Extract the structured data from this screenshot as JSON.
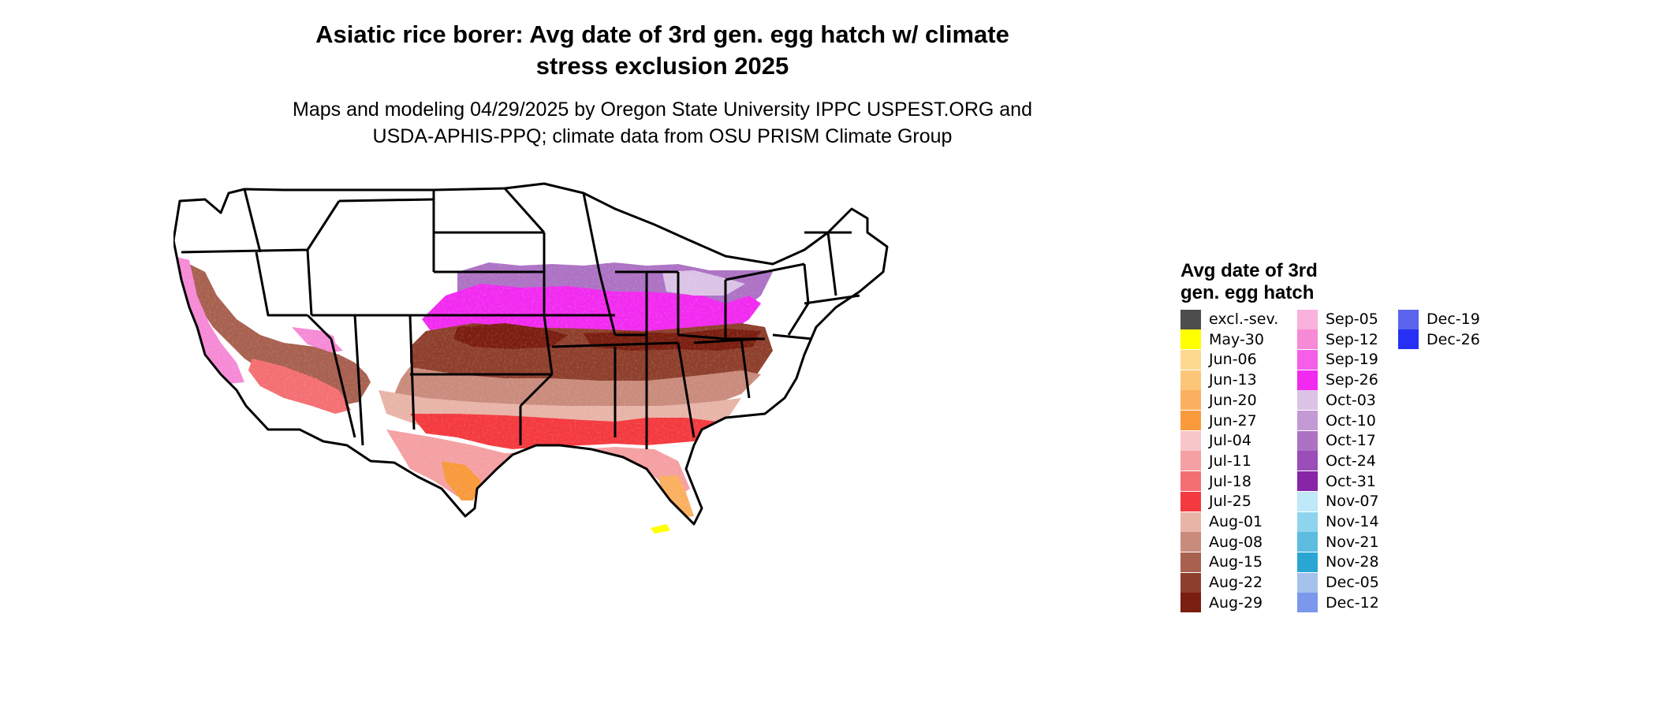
{
  "title": {
    "line1": "Asiatic rice borer: Avg date of 3rd gen. egg hatch w/ climate",
    "line2": "stress exclusion 2025"
  },
  "subtitle": {
    "line1": "Maps and modeling 04/29/2025 by Oregon State University IPPC USPEST.ORG and",
    "line2": "USDA-APHIS-PPQ; climate data from OSU PRISM Climate Group"
  },
  "legend": {
    "title_line1": "Avg date of 3rd",
    "title_line2": "gen. egg hatch",
    "items": [
      {
        "label": "excl.-sev.",
        "color": "#4d4d4d"
      },
      {
        "label": "May-30",
        "color": "#ffff00"
      },
      {
        "label": "Jun-06",
        "color": "#fdd98f"
      },
      {
        "label": "Jun-13",
        "color": "#fcc678"
      },
      {
        "label": "Jun-20",
        "color": "#fbb060"
      },
      {
        "label": "Jun-27",
        "color": "#f99a3c"
      },
      {
        "label": "Jul-04",
        "color": "#f7c6c8"
      },
      {
        "label": "Jul-11",
        "color": "#f5a0a2"
      },
      {
        "label": "Jul-18",
        "color": "#f46f72"
      },
      {
        "label": "Jul-25",
        "color": "#f43a3f"
      },
      {
        "label": "Aug-01",
        "color": "#e8b4a8"
      },
      {
        "label": "Aug-08",
        "color": "#c98b7c"
      },
      {
        "label": "Aug-15",
        "color": "#a8604f"
      },
      {
        "label": "Aug-22",
        "color": "#8e3f2c"
      },
      {
        "label": "Aug-29",
        "color": "#7a1e10"
      },
      {
        "label": "Sep-05",
        "color": "#f8b2dc"
      },
      {
        "label": "Sep-12",
        "color": "#f68ad6"
      },
      {
        "label": "Sep-19",
        "color": "#f55ee8"
      },
      {
        "label": "Sep-26",
        "color": "#f22af0"
      },
      {
        "label": "Oct-03",
        "color": "#dcc3e6"
      },
      {
        "label": "Oct-10",
        "color": "#c49ad6"
      },
      {
        "label": "Oct-17",
        "color": "#ad72c4"
      },
      {
        "label": "Oct-24",
        "color": "#9b4eb8"
      },
      {
        "label": "Oct-31",
        "color": "#8724a8"
      },
      {
        "label": "Nov-07",
        "color": "#bfe8f8"
      },
      {
        "label": "Nov-14",
        "color": "#8fd4ee"
      },
      {
        "label": "Nov-21",
        "color": "#5cbde0"
      },
      {
        "label": "Nov-28",
        "color": "#2aa6d2"
      },
      {
        "label": "Dec-05",
        "color": "#a5c2ec"
      },
      {
        "label": "Dec-12",
        "color": "#7b98ec"
      },
      {
        "label": "Dec-19",
        "color": "#5a64ec"
      },
      {
        "label": "Dec-26",
        "color": "#2630f4"
      }
    ]
  }
}
